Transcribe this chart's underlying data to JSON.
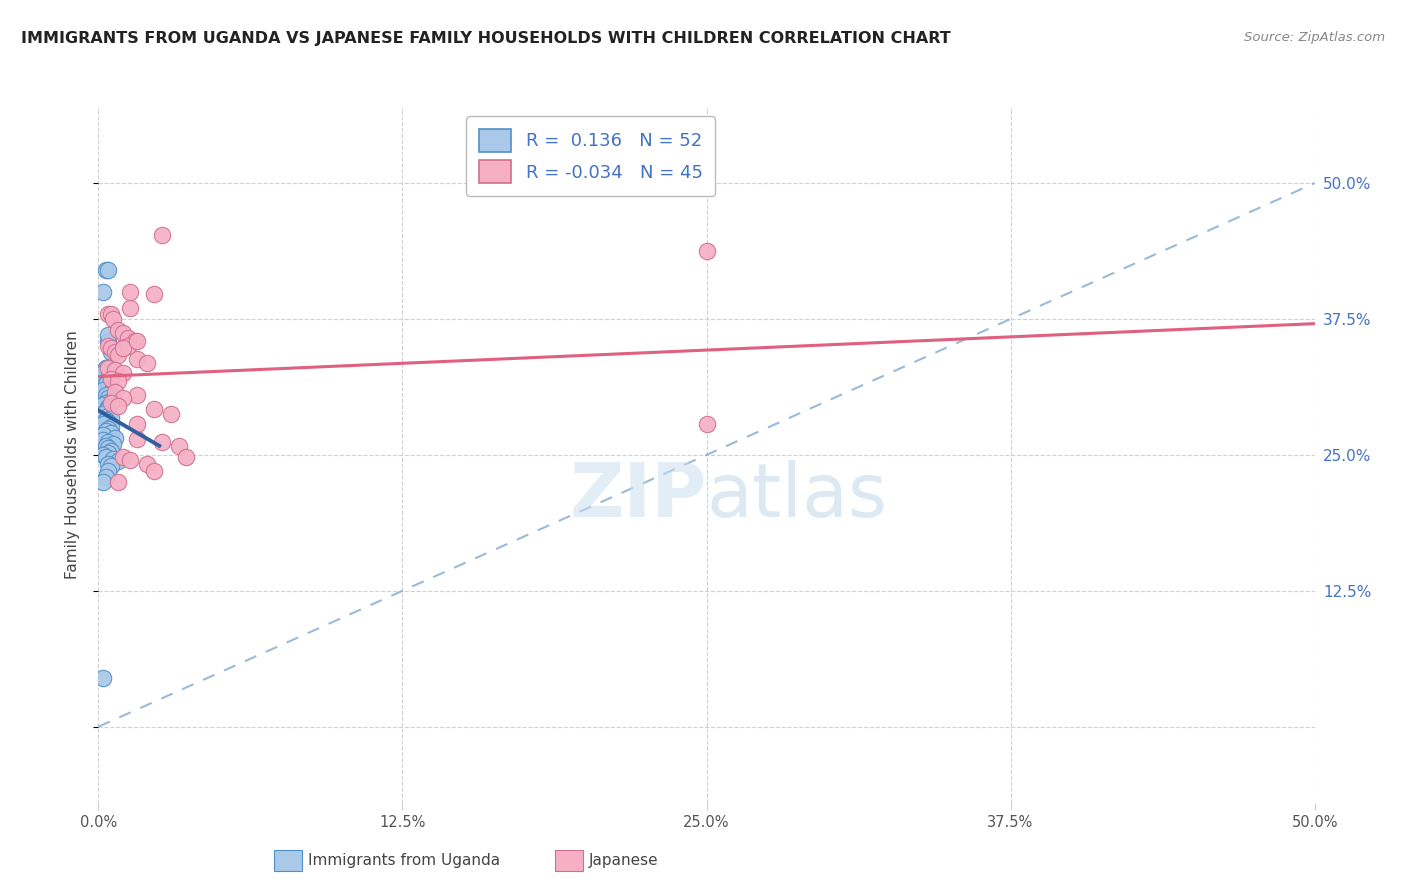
{
  "title": "IMMIGRANTS FROM UGANDA VS JAPANESE FAMILY HOUSEHOLDS WITH CHILDREN CORRELATION CHART",
  "source": "Source: ZipAtlas.com",
  "ylabel": "Family Households with Children",
  "r_uganda": 0.136,
  "n_uganda": 52,
  "r_japanese": -0.034,
  "n_japanese": 45,
  "color_uganda_fill": "#aac8e8",
  "color_uganda_edge": "#5090c8",
  "color_japanese_fill": "#f5b0c5",
  "color_japanese_edge": "#d07090",
  "line_color_uganda": "#3060a0",
  "line_color_japanese": "#e06080",
  "diag_color": "#80aad0",
  "grid_color": "#cccccc",
  "right_tick_color": "#4472c4",
  "xlim": [
    0.0,
    0.5
  ],
  "ylim": [
    -0.07,
    0.57
  ],
  "x_ticks": [
    0.0,
    0.125,
    0.25,
    0.375,
    0.5
  ],
  "x_tick_labels": [
    "0.0%",
    "12.5%",
    "25.0%",
    "37.5%",
    "50.0%"
  ],
  "y_ticks": [
    0.0,
    0.125,
    0.25,
    0.375,
    0.5
  ],
  "y_tick_labels": [
    "",
    "12.5%",
    "25.0%",
    "37.5%",
    "50.0%"
  ],
  "uganda_x": [
    0.003,
    0.004,
    0.002,
    0.004,
    0.005,
    0.003,
    0.003,
    0.002,
    0.004,
    0.004,
    0.003,
    0.004,
    0.002,
    0.005,
    0.003,
    0.004,
    0.005,
    0.003,
    0.002,
    0.004,
    0.004,
    0.003,
    0.002,
    0.004,
    0.005,
    0.003,
    0.004,
    0.002,
    0.005,
    0.004,
    0.003,
    0.005,
    0.002,
    0.007,
    0.002,
    0.004,
    0.006,
    0.003,
    0.004,
    0.005,
    0.004,
    0.002,
    0.003,
    0.006,
    0.008,
    0.004,
    0.005,
    0.004,
    0.003,
    0.002,
    0.002,
    0.004
  ],
  "uganda_y": [
    0.42,
    0.42,
    0.4,
    0.355,
    0.345,
    0.33,
    0.33,
    0.325,
    0.32,
    0.318,
    0.315,
    0.312,
    0.31,
    0.308,
    0.305,
    0.302,
    0.3,
    0.298,
    0.296,
    0.294,
    0.292,
    0.29,
    0.288,
    0.286,
    0.284,
    0.282,
    0.28,
    0.278,
    0.276,
    0.274,
    0.272,
    0.27,
    0.268,
    0.266,
    0.264,
    0.262,
    0.26,
    0.258,
    0.256,
    0.254,
    0.252,
    0.25,
    0.248,
    0.246,
    0.244,
    0.242,
    0.24,
    0.235,
    0.23,
    0.225,
    0.045,
    0.36
  ],
  "japanese_x": [
    0.004,
    0.005,
    0.006,
    0.008,
    0.01,
    0.012,
    0.015,
    0.004,
    0.005,
    0.007,
    0.01,
    0.008,
    0.016,
    0.02,
    0.004,
    0.007,
    0.01,
    0.005,
    0.008,
    0.013,
    0.012,
    0.007,
    0.016,
    0.01,
    0.005,
    0.008,
    0.023,
    0.016,
    0.026,
    0.033,
    0.01,
    0.013,
    0.02,
    0.023,
    0.008,
    0.026,
    0.036,
    0.016,
    0.03,
    0.25,
    0.01,
    0.013,
    0.023,
    0.25,
    0.016
  ],
  "japanese_y": [
    0.38,
    0.38,
    0.375,
    0.365,
    0.362,
    0.358,
    0.355,
    0.35,
    0.348,
    0.345,
    0.348,
    0.342,
    0.338,
    0.335,
    0.33,
    0.328,
    0.325,
    0.32,
    0.318,
    0.385,
    0.35,
    0.308,
    0.305,
    0.302,
    0.298,
    0.295,
    0.292,
    0.265,
    0.262,
    0.258,
    0.248,
    0.245,
    0.242,
    0.235,
    0.225,
    0.452,
    0.248,
    0.278,
    0.288,
    0.438,
    0.348,
    0.4,
    0.398,
    0.278,
    0.355
  ]
}
